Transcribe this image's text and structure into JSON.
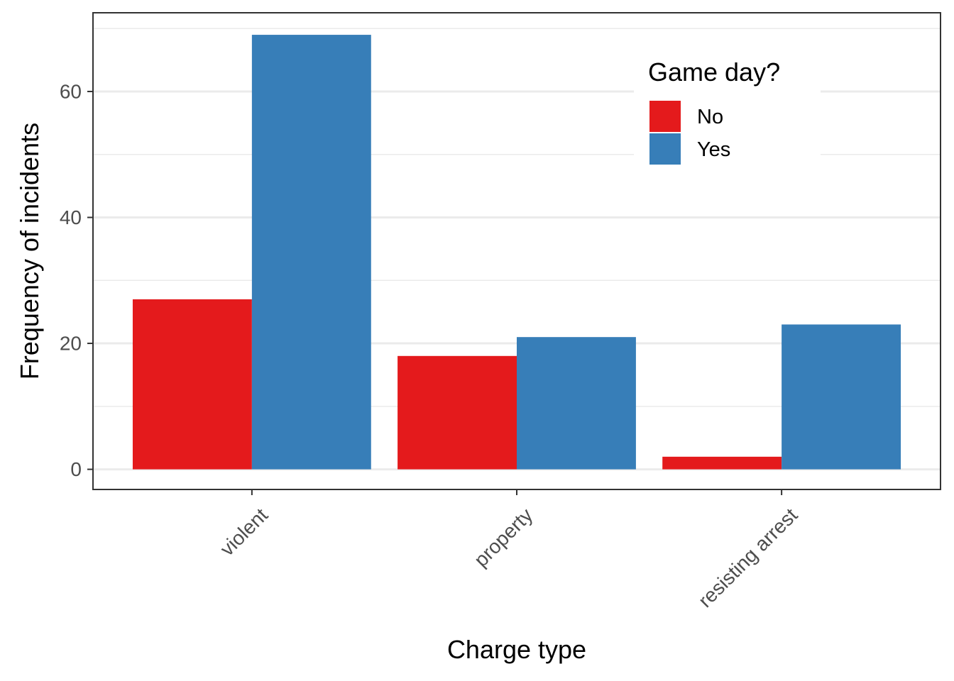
{
  "chart_data": {
    "type": "bar",
    "categories": [
      "violent",
      "property",
      "resisting arrest"
    ],
    "series": [
      {
        "name": "No",
        "values": [
          27,
          18,
          2
        ],
        "color": "#E41A1C"
      },
      {
        "name": "Yes",
        "values": [
          69,
          21,
          23
        ],
        "color": "#377EB8"
      }
    ],
    "title": "",
    "xlabel": "Charge type",
    "ylabel": "Frequency of incidents",
    "ylim": [
      -3.2,
      72.5
    ],
    "yticks": [
      0,
      20,
      40,
      60
    ],
    "grid": true,
    "legend": {
      "title": "Game day?",
      "placement": "top-right inside"
    }
  }
}
